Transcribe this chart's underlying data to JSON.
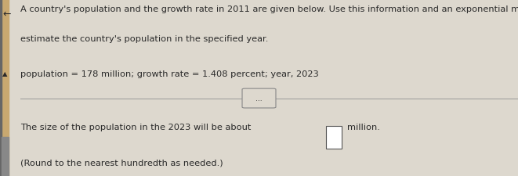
{
  "bg_color": "#ddd8ce",
  "text_color": "#2a2a2a",
  "line1": "A country's population and the growth rate in 2011 are given below. Use this information and an exponential model to",
  "line2": "estimate the country's population in the specified year.",
  "line3": "population = 178 million; growth rate = 1.408 percent; year, 2023",
  "line4": "The size of the population in the 2023 will be about",
  "line5": "million.",
  "line6": "(Round to the nearest hundredth as needed.)",
  "left_bar_color": "#c8a870",
  "left_bar2_color": "#888888",
  "dots_label": "...",
  "arrow_symbol": "←",
  "triangle_symbol": "▲"
}
